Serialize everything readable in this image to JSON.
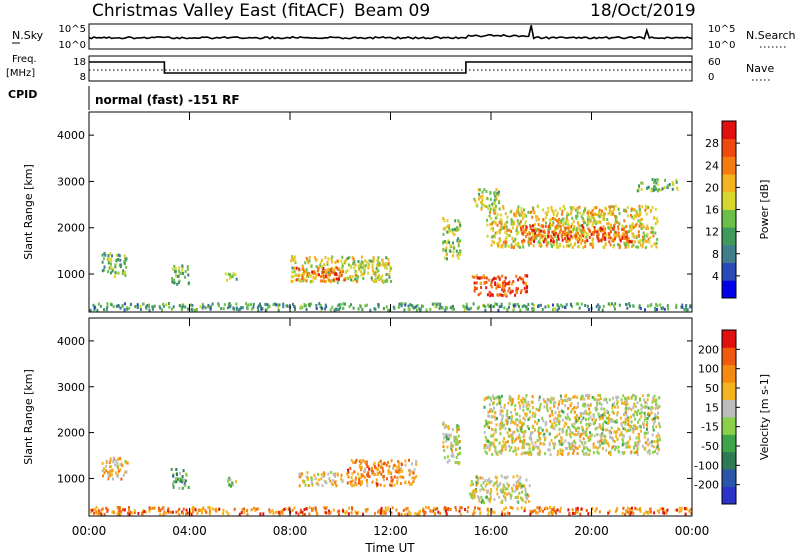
{
  "header": {
    "title": "Christmas Valley East (fitACF)",
    "beam": "Beam 09",
    "date": "18/Oct/2019"
  },
  "top_panels": {
    "nsky_label": "N.Sky",
    "nsky_ticks": [
      "10^5",
      "10^0"
    ],
    "nsearch_label": "N.Search",
    "nsearch_ticks": [
      "10^5",
      "10^0"
    ],
    "freq_label_1": "Freq.",
    "freq_label_2": "[MHz]",
    "freq_ticks": [
      "18",
      "8"
    ],
    "nave_label": "Nave",
    "nave_ticks": [
      "60",
      "0"
    ],
    "cpid_label": "CPID",
    "cpid_text": "normal (fast) -151 RF"
  },
  "x_axis": {
    "label": "Time UT",
    "ticks": [
      "00:00",
      "04:00",
      "08:00",
      "12:00",
      "16:00",
      "20:00",
      "00:00"
    ]
  },
  "chart_data": [
    {
      "type": "heatmap",
      "ylabel": "Slant Range [km]",
      "y_ticks": [
        "4000",
        "3000",
        "2000",
        "1000"
      ],
      "ylim": [
        180,
        4500
      ],
      "xlim_hours": [
        0,
        24
      ],
      "colorbar": {
        "label": "Power [dB]",
        "ticks": [
          "28",
          "24",
          "20",
          "16",
          "12",
          "8",
          "4"
        ],
        "colors": [
          "#0000e6",
          "#2a4ab8",
          "#3f7e8a",
          "#3f9a5c",
          "#6cc04a",
          "#d7d72c",
          "#f5b31e",
          "#f57a10",
          "#ef4a0e",
          "#e01010"
        ]
      },
      "blobs": [
        {
          "t": 1.0,
          "r": 1230,
          "dt": 1.0,
          "dr": 500,
          "level": 0.42
        },
        {
          "t": 3.6,
          "r": 1020,
          "dt": 0.7,
          "dr": 420,
          "level": 0.4
        },
        {
          "t": 5.6,
          "r": 950,
          "dt": 0.5,
          "dr": 200,
          "level": 0.4
        },
        {
          "t": 10.0,
          "r": 1130,
          "dt": 4.0,
          "dr": 560,
          "level": 0.55
        },
        {
          "t": 9.2,
          "r": 1020,
          "dt": 2.0,
          "dr": 300,
          "level": 0.78
        },
        {
          "t": 14.4,
          "r": 1800,
          "dt": 0.7,
          "dr": 900,
          "level": 0.5
        },
        {
          "t": 15.8,
          "r": 2650,
          "dt": 1.0,
          "dr": 450,
          "level": 0.5
        },
        {
          "t": 19.2,
          "r": 2050,
          "dt": 6.8,
          "dr": 900,
          "level": 0.58
        },
        {
          "t": 19.4,
          "r": 1900,
          "dt": 4.5,
          "dr": 350,
          "level": 0.82
        },
        {
          "t": 16.3,
          "r": 780,
          "dt": 2.2,
          "dr": 450,
          "level": 0.82
        },
        {
          "t": 22.6,
          "r": 2950,
          "dt": 1.6,
          "dr": 250,
          "level": 0.4
        },
        {
          "t": 12.0,
          "r": 320,
          "dt": 24.0,
          "dr": 150,
          "level": 0.35
        }
      ]
    },
    {
      "type": "heatmap",
      "ylabel": "Slant Range [km]",
      "y_ticks": [
        "4000",
        "3000",
        "2000",
        "1000"
      ],
      "ylim": [
        180,
        4500
      ],
      "xlim_hours": [
        0,
        24
      ],
      "colorbar": {
        "label": "Velocity [m s-1]",
        "ticks": [
          "200",
          "100",
          "50",
          "15",
          "-15",
          "-50",
          "-100",
          "-200"
        ],
        "colors": [
          "#2a35c8",
          "#2a55a8",
          "#2e7a55",
          "#3fa34a",
          "#8ad04a",
          "#bdbdbd",
          "#f5b31e",
          "#f58a10",
          "#ef5a0e",
          "#e01010"
        ]
      },
      "blobs": [
        {
          "t": 1.0,
          "r": 1230,
          "dt": 1.0,
          "dr": 500,
          "level": 0.65
        },
        {
          "t": 3.6,
          "r": 1020,
          "dt": 0.7,
          "dr": 420,
          "level": 0.35
        },
        {
          "t": 5.6,
          "r": 950,
          "dt": 0.5,
          "dr": 200,
          "level": 0.45
        },
        {
          "t": 9.2,
          "r": 1020,
          "dt": 1.8,
          "dr": 300,
          "level": 0.62
        },
        {
          "t": 11.6,
          "r": 1150,
          "dt": 2.8,
          "dr": 560,
          "level": 0.75
        },
        {
          "t": 14.4,
          "r": 1800,
          "dt": 0.7,
          "dr": 900,
          "level": 0.55
        },
        {
          "t": 19.2,
          "r": 2200,
          "dt": 7.0,
          "dr": 1300,
          "level": 0.55
        },
        {
          "t": 16.3,
          "r": 800,
          "dt": 2.4,
          "dr": 600,
          "level": 0.55
        },
        {
          "t": 12.0,
          "r": 320,
          "dt": 24.0,
          "dr": 160,
          "level": 0.78
        }
      ]
    }
  ]
}
